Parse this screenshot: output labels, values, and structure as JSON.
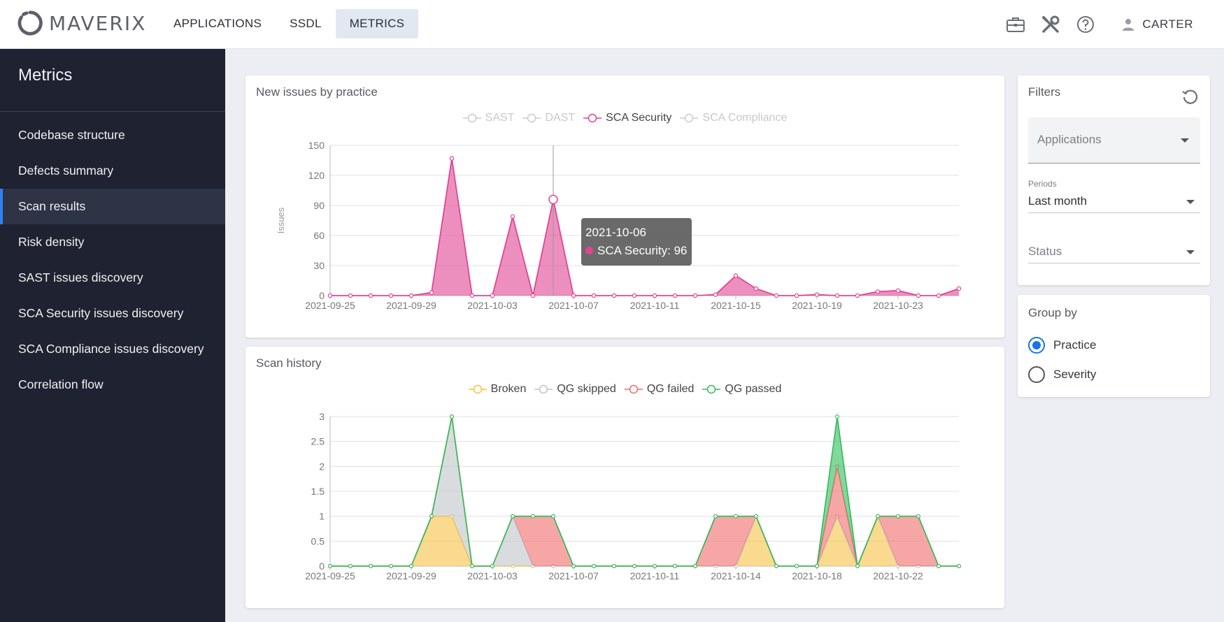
{
  "header": {
    "logo_text": "MAVERIX",
    "nav": [
      {
        "label": "APPLICATIONS"
      },
      {
        "label": "SSDL"
      },
      {
        "label": "METRICS"
      }
    ],
    "user_label": "CARTER",
    "icons": [
      "briefcase-icon",
      "tools-icon",
      "help-icon",
      "user-icon"
    ]
  },
  "sidebar": {
    "title": "Metrics",
    "items": [
      {
        "label": "Codebase structure"
      },
      {
        "label": "Defects summary"
      },
      {
        "label": "Scan results"
      },
      {
        "label": "Risk density"
      },
      {
        "label": "SAST issues discovery"
      },
      {
        "label": "SCA Security issues discovery"
      },
      {
        "label": "SCA Compliance issues discovery"
      },
      {
        "label": "Correlation flow"
      }
    ],
    "active_index": 2
  },
  "filters": {
    "title": "Filters",
    "applications_label": "Applications",
    "periods_label": "Periods",
    "periods_value": "Last month",
    "status_label": "Status"
  },
  "groupby": {
    "title": "Group by",
    "options": [
      {
        "label": "Practice",
        "selected": true
      },
      {
        "label": "Severity",
        "selected": false
      }
    ]
  },
  "tooltip": {
    "date": "2021-10-06",
    "text": "SCA Security: 96"
  },
  "chart_data": [
    {
      "type": "area",
      "title": "New issues by practice",
      "ylabel": "Issues",
      "ylim": [
        0,
        150
      ],
      "yticks": [
        "0",
        "30",
        "60",
        "90",
        "120",
        "150"
      ],
      "x_tick_labels": [
        "2021-09-25",
        "2021-09-29",
        "2021-10-03",
        "2021-10-07",
        "2021-10-11",
        "2021-10-15",
        "2021-10-19",
        "2021-10-23"
      ],
      "legend": [
        {
          "name": "SAST",
          "color": "#cccccc",
          "active": false
        },
        {
          "name": "DAST",
          "color": "#cccccc",
          "active": false
        },
        {
          "name": "SCA Security",
          "color": "#e14593",
          "active": true
        },
        {
          "name": "SCA Compliance",
          "color": "#cccccc",
          "active": false
        }
      ],
      "series": [
        {
          "name": "SCA Security",
          "color": "#e14593",
          "values": [
            0,
            0,
            0,
            0,
            0,
            3,
            137,
            0,
            0,
            79,
            0,
            96,
            0,
            0,
            0,
            0,
            0,
            0,
            0,
            1,
            20,
            7,
            0,
            0,
            1,
            0,
            0,
            4,
            5,
            0,
            0,
            7
          ]
        }
      ]
    },
    {
      "type": "area",
      "title": "Scan history",
      "ylim": [
        0,
        3
      ],
      "yticks": [
        "0",
        "0.5",
        "1",
        "1.5",
        "2",
        "2.5",
        "3"
      ],
      "x_tick_labels": [
        "2021-09-25",
        "2021-09-29",
        "2021-10-03",
        "2021-10-07",
        "2021-10-11",
        "2021-10-14",
        "2021-10-18",
        "2021-10-22"
      ],
      "series": [
        {
          "name": "Broken",
          "color": "#f5c242",
          "values": [
            0,
            0,
            0,
            0,
            0,
            1,
            1,
            0,
            0,
            0,
            0,
            0,
            0,
            0,
            0,
            0,
            0,
            0,
            0,
            0,
            0,
            1,
            0,
            0,
            0,
            1,
            0,
            1,
            0,
            0,
            0,
            0
          ]
        },
        {
          "name": "QG skipped",
          "color": "#bfc4c8",
          "values": [
            0,
            0,
            0,
            0,
            0,
            0,
            2,
            0,
            0,
            1,
            0,
            0,
            0,
            0,
            0,
            0,
            0,
            0,
            0,
            0,
            0,
            0,
            0,
            0,
            0,
            0,
            0,
            0,
            0,
            0,
            0,
            0
          ]
        },
        {
          "name": "QG failed",
          "color": "#f26b6b",
          "values": [
            0,
            0,
            0,
            0,
            0,
            0,
            0,
            0,
            0,
            0,
            1,
            1,
            0,
            0,
            0,
            0,
            0,
            0,
            0,
            1,
            1,
            0,
            0,
            0,
            0,
            1,
            0,
            0,
            1,
            1,
            0,
            0
          ]
        },
        {
          "name": "QG passed",
          "color": "#2ebd59",
          "values": [
            0,
            0,
            0,
            0,
            0,
            0,
            0,
            0,
            0,
            0,
            0,
            0,
            0,
            0,
            0,
            0,
            0,
            0,
            0,
            0,
            0,
            0,
            0,
            0,
            0,
            1,
            0,
            0,
            0,
            0,
            0,
            0
          ]
        }
      ]
    }
  ]
}
